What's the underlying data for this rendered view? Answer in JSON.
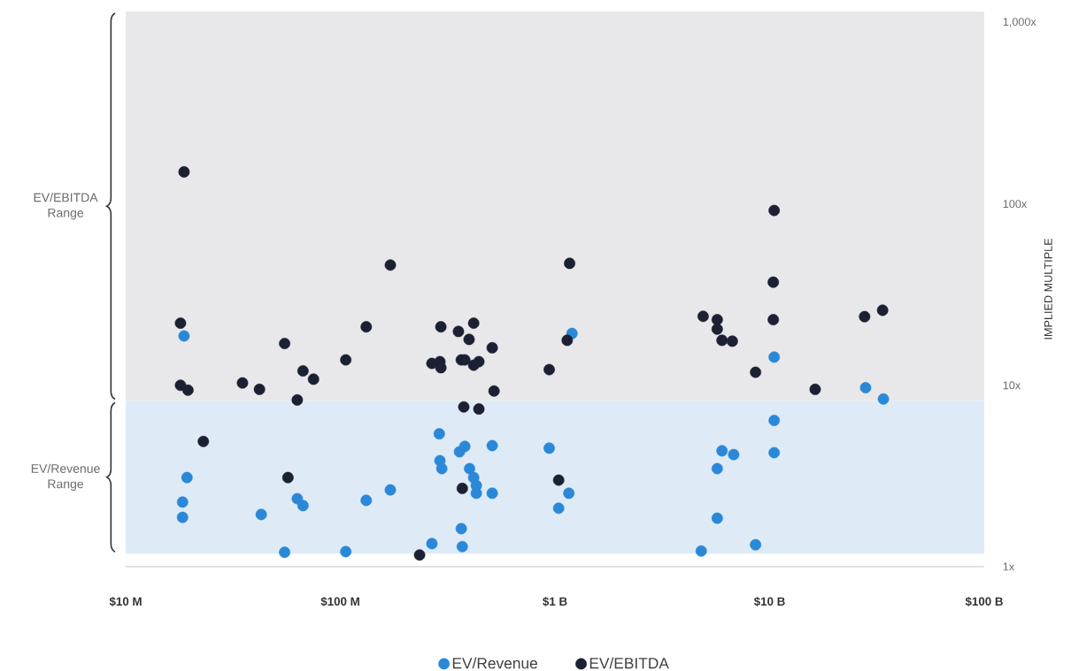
{
  "chart_data": {
    "type": "scatter",
    "ylabel": "IMPLIED MULTIPLE",
    "log": "xy",
    "grid": false,
    "legend": "bottom",
    "xlim": [
      10000000,
      100000000000
    ],
    "ylim": [
      1,
      1150
    ],
    "xticks": [
      {
        "value": 10000000,
        "label": "$10 M"
      },
      {
        "value": 100000000,
        "label": "$100 M"
      },
      {
        "value": 1000000000,
        "label": "$1 B"
      },
      {
        "value": 10000000000,
        "label": "$10 B"
      },
      {
        "value": 100000000000,
        "label": "$100 B"
      }
    ],
    "yticks": [
      {
        "value": 1,
        "label": "1x"
      },
      {
        "value": 10,
        "label": "10x"
      },
      {
        "value": 100,
        "label": "100x"
      },
      {
        "value": 1000,
        "label": "1,000x"
      }
    ],
    "bands": [
      {
        "axis": "y",
        "from": 8.2,
        "to": 1150,
        "label": "EV/EBITDA Range",
        "color": "#e8e8ea"
      },
      {
        "axis": "y",
        "from": 1.18,
        "to": 8.2,
        "label": "EV/Revenue Range",
        "color": "#deebf7"
      }
    ],
    "series": [
      {
        "name": "EV/Revenue",
        "color": "#2b88d8",
        "x": [
          18700000,
          19300000,
          18400000,
          18400000,
          42800000,
          55000000,
          63000000,
          67000000,
          106000000,
          132000000,
          171000000,
          267000000,
          289000000,
          291000000,
          297000000,
          359000000,
          380000000,
          366000000,
          370000000,
          400000000,
          418000000,
          430000000,
          430000000,
          510000000,
          510000000,
          940000000,
          1200000000,
          1040000000,
          1160000000,
          4800000000,
          5700000000,
          5700000000,
          6000000000,
          6800000000,
          8600000000,
          10500000000,
          10500000000,
          10500000000,
          28000000000,
          33900000000
        ],
        "values": [
          18.7,
          3.1,
          2.27,
          1.87,
          1.94,
          1.2,
          2.37,
          2.17,
          1.21,
          2.32,
          2.65,
          1.34,
          5.4,
          3.84,
          3.47,
          4.3,
          4.6,
          1.62,
          1.29,
          3.47,
          3.1,
          2.8,
          2.54,
          2.54,
          4.65,
          4.5,
          19.3,
          2.1,
          2.54,
          1.22,
          3.47,
          1.85,
          4.35,
          4.15,
          1.32,
          14.3,
          6.4,
          4.25,
          9.7,
          8.4
        ]
      },
      {
        "name": "EV/EBITDA",
        "color": "#1c2033",
        "x": [
          18700000,
          18000000,
          18000000,
          19500000,
          23000000,
          35000000,
          42000000,
          55000000,
          63000000,
          67000000,
          75000000,
          57000000,
          106000000,
          132000000,
          171000000,
          234000000,
          267000000,
          291000000,
          294000000,
          294000000,
          355000000,
          366000000,
          380000000,
          398000000,
          418000000,
          418000000,
          442000000,
          510000000,
          520000000,
          376000000,
          442000000,
          370000000,
          940000000,
          1170000000,
          1140000000,
          1040000000,
          4900000000,
          5700000000,
          5700000000,
          6000000000,
          6700000000,
          8600000000,
          10500000000,
          10400000000,
          10400000000,
          16300000000,
          27700000000,
          33600000000
        ],
        "values": [
          150,
          22,
          10,
          9.4,
          4.9,
          10.3,
          9.5,
          17,
          8.3,
          12,
          10.8,
          3.1,
          13.8,
          21,
          46,
          1.16,
          13.2,
          13.5,
          12.5,
          21,
          19.8,
          13.8,
          13.8,
          17.9,
          22,
          12.9,
          13.5,
          16.1,
          9.3,
          7.6,
          7.4,
          2.7,
          12.2,
          47,
          17.7,
          3.0,
          24,
          23,
          20.4,
          17.7,
          17.5,
          11.8,
          92,
          37,
          23,
          9.5,
          23.9,
          25.9
        ]
      }
    ]
  }
}
